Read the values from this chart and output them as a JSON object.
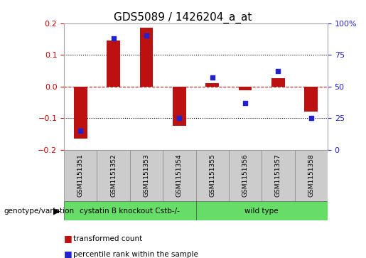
{
  "title": "GDS5089 / 1426204_a_at",
  "samples": [
    "GSM1151351",
    "GSM1151352",
    "GSM1151353",
    "GSM1151354",
    "GSM1151355",
    "GSM1151356",
    "GSM1151357",
    "GSM1151358"
  ],
  "red_values": [
    -0.165,
    0.145,
    0.185,
    -0.125,
    0.01,
    -0.012,
    0.025,
    -0.08
  ],
  "blue_values": [
    15,
    88,
    90,
    25,
    57,
    37,
    62,
    25
  ],
  "ylim_left": [
    -0.2,
    0.2
  ],
  "ylim_right": [
    0,
    100
  ],
  "yticks_left": [
    -0.2,
    -0.1,
    0,
    0.1,
    0.2
  ],
  "yticks_right": [
    0,
    25,
    50,
    75,
    100
  ],
  "ytick_labels_right": [
    "0",
    "25",
    "50",
    "75",
    "100%"
  ],
  "bar_color": "#bb1111",
  "dot_color": "#2222cc",
  "bar_width": 0.4,
  "group1_label": "cystatin B knockout Cstb-/-",
  "group2_label": "wild type",
  "group_color": "#66dd66",
  "sample_box_color": "#cccccc",
  "group_row_label": "genotype/variation",
  "legend_red": "transformed count",
  "legend_blue": "percentile rank within the sample",
  "background_color": "#ffffff",
  "axis_label_color_red": "#cc0000",
  "axis_label_color_blue": "#2222cc",
  "title_fontsize": 11,
  "tick_fontsize": 8,
  "sample_fontsize": 6.5
}
